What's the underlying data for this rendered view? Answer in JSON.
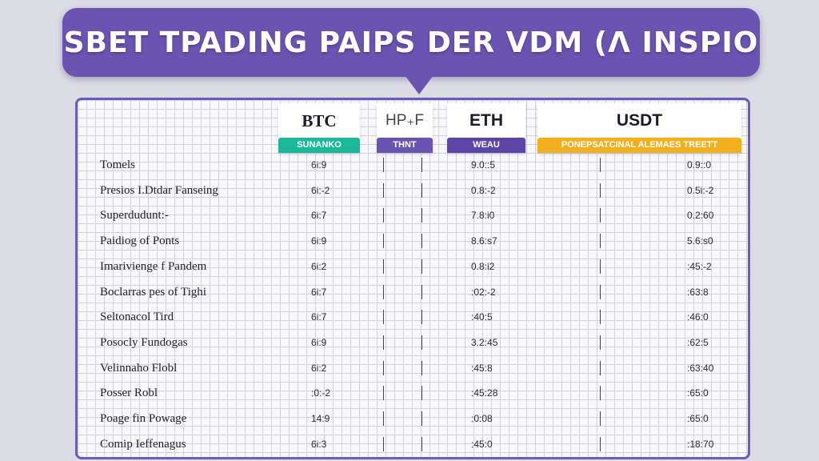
{
  "banner": {
    "title": "SBET TPADING PAIPS DER VDM (Λ INSPIO"
  },
  "columns": [
    {
      "name": "BTC",
      "tag": "SUNANKO",
      "tag_color": "#1db89a"
    },
    {
      "name": "HP₊F",
      "tag": "THNT",
      "tag_color": "#6a54b2"
    },
    {
      "name": "ETH",
      "tag": "WEAU",
      "tag_color": "#5b45a6"
    },
    {
      "name": "USDT",
      "tag": "PONEPSATCINAL ALEMAES TREETT",
      "tag_color": "#f2b020"
    }
  ],
  "rows": [
    {
      "label": "Tomels",
      "btc": "6i:9",
      "eth": "9.0::5",
      "usdt": "0.9::0"
    },
    {
      "label": "Presios I.Dtdar Fanseing",
      "btc": "6i:-2",
      "eth": "0.8:-2",
      "usdt": "0.5i:-2"
    },
    {
      "label": "Superdudunt:-",
      "btc": "6i:7",
      "eth": "7.8:i0",
      "usdt": "0.2:60"
    },
    {
      "label": "Paidiog of Ponts",
      "btc": "6i:9",
      "eth": "8.6:s7",
      "usdt": "5.6:s0"
    },
    {
      "label": "Imarivienge f Pandem",
      "btc": "6i:2",
      "eth": "0.8:i2",
      "usdt": ":45:-2"
    },
    {
      "label": "Boclarras pes of Tighi",
      "btc": "6i:7",
      "eth": ":02:-2",
      "usdt": ":63:8"
    },
    {
      "label": "Seltonacol Tird",
      "btc": "6i:7",
      "eth": ":40:5",
      "usdt": ":46:0"
    },
    {
      "label": "Posocly Fundogas",
      "btc": "6i:9",
      "eth": "3.2:45",
      "usdt": ":62:5"
    },
    {
      "label": "Velinnaho Flobl",
      "btc": "6i:2",
      "eth": ":45:8",
      "usdt": ":63:40"
    },
    {
      "label": "Posser Robl",
      "btc": ":0:-2",
      "eth": ":45:28",
      "usdt": ":65:0"
    },
    {
      "label": "Poage fin Powage",
      "btc": "14:9",
      "eth": ":0:08",
      "usdt": ":65:0"
    },
    {
      "label": "Comip Ieffenagus",
      "btc": "6i:3",
      "eth": ":45:0",
      "usdt": ":18:70"
    }
  ]
}
